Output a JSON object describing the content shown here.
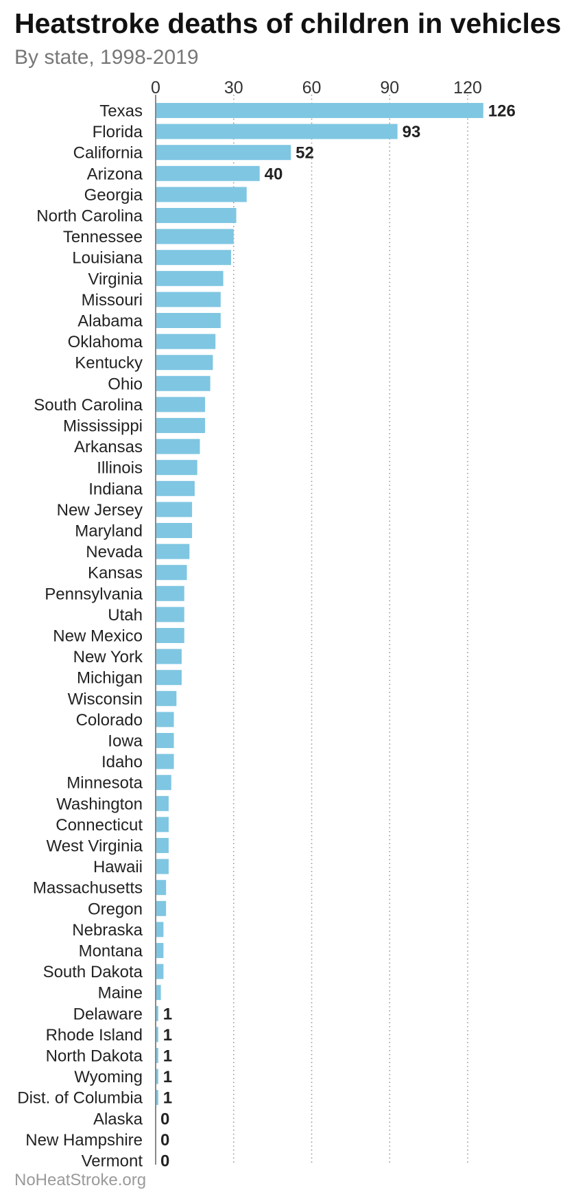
{
  "chart_data": {
    "type": "bar",
    "orientation": "horizontal",
    "title": "Heatstroke deaths of children in vehicles",
    "subtitle": "By state, 1998-2019",
    "source": "NoHeatStroke.org",
    "xlim": [
      0,
      126
    ],
    "xticks": [
      0,
      30,
      60,
      90,
      120
    ],
    "grid": true,
    "bar_color": "#7fc6e2",
    "categories": [
      "Texas",
      "Florida",
      "California",
      "Arizona",
      "Georgia",
      "North Carolina",
      "Tennessee",
      "Louisiana",
      "Virginia",
      "Missouri",
      "Alabama",
      "Oklahoma",
      "Kentucky",
      "Ohio",
      "South Carolina",
      "Mississippi",
      "Arkansas",
      "Illinois",
      "Indiana",
      "New Jersey",
      "Maryland",
      "Nevada",
      "Kansas",
      "Pennsylvania",
      "Utah",
      "New Mexico",
      "New York",
      "Michigan",
      "Wisconsin",
      "Colorado",
      "Iowa",
      "Idaho",
      "Minnesota",
      "Washington",
      "Connecticut",
      "West Virginia",
      "Hawaii",
      "Massachusetts",
      "Oregon",
      "Nebraska",
      "Montana",
      "South Dakota",
      "Maine",
      "Delaware",
      "Rhode Island",
      "North Dakota",
      "Wyoming",
      "Dist. of Columbia",
      "Alaska",
      "New Hampshire",
      "Vermont"
    ],
    "values": [
      126,
      93,
      52,
      40,
      35,
      31,
      30,
      29,
      26,
      25,
      25,
      23,
      22,
      21,
      19,
      19,
      17,
      16,
      15,
      14,
      14,
      13,
      12,
      11,
      11,
      11,
      10,
      10,
      8,
      7,
      7,
      7,
      6,
      5,
      5,
      5,
      5,
      4,
      4,
      3,
      3,
      3,
      2,
      1,
      1,
      1,
      1,
      1,
      0,
      0,
      0
    ],
    "data_labels": [
      "126",
      "93",
      "52",
      "40",
      "",
      "",
      "",
      "",
      "",
      "",
      "",
      "",
      "",
      "",
      "",
      "",
      "",
      "",
      "",
      "",
      "",
      "",
      "",
      "",
      "",
      "",
      "",
      "",
      "",
      "",
      "",
      "",
      "",
      "",
      "",
      "",
      "",
      "",
      "",
      "",
      "",
      "",
      "",
      "1",
      "1",
      "1",
      "1",
      "1",
      "0",
      "0",
      "0"
    ]
  }
}
